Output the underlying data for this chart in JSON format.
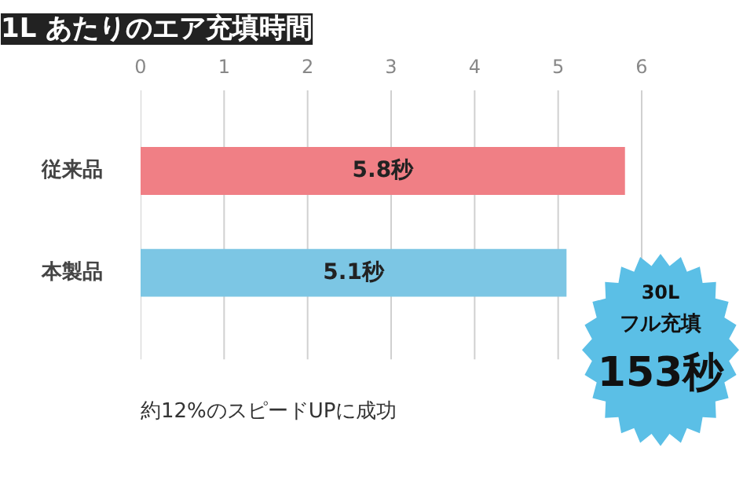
{
  "chart_data": {
    "type": "bar",
    "orientation": "horizontal",
    "title": "1L あたりのエア充填時間",
    "categories": [
      "従来品",
      "本製品"
    ],
    "values": [
      5.8,
      5.1
    ],
    "colors": [
      "#f07f85",
      "#7cc6e4"
    ],
    "value_labels": [
      "5.8秒",
      "5.1秒"
    ],
    "xlim": [
      0,
      6
    ],
    "xticks": [
      0,
      1,
      2,
      3,
      4,
      5,
      6
    ],
    "grid": "x",
    "annotations": [
      "約12%のスピードUPに成功",
      "30L\nフル充填\n153秒"
    ]
  }
}
